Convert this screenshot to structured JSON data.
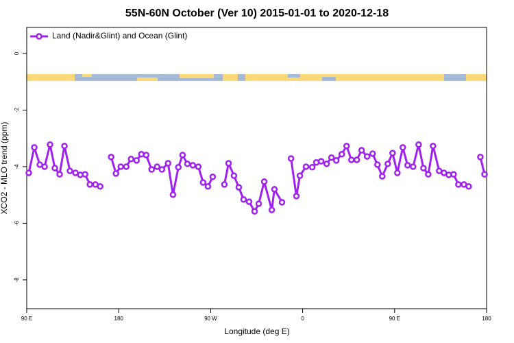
{
  "chart_data": {
    "type": "line",
    "title": "55N-60N October (Ver 10)   2015-01-01 to 2020-12-18",
    "xlabel": "Longitude (deg E)",
    "ylabel": "XCO2 - MLO trend (ppm)",
    "xlim": [
      90,
      540
    ],
    "xticks": [
      {
        "value": 90,
        "label": "90 E"
      },
      {
        "value": 180,
        "label": "180"
      },
      {
        "value": 270,
        "label": "90 W"
      },
      {
        "value": 360,
        "label": "0"
      },
      {
        "value": 450,
        "label": "90 E"
      },
      {
        "value": 540,
        "label": "180"
      }
    ],
    "ylim": [
      -9.02,
      0.92
    ],
    "yticks": [
      0,
      -2,
      -4,
      -6,
      -8
    ],
    "legend": "upper left",
    "x": [
      92.0,
      97.4,
      102.8,
      107.5,
      112.8,
      117.5,
      122.2,
      126.9,
      132.3,
      137.7,
      142.4,
      147.1,
      151.8,
      157.2,
      161.9,
      167.0,
      172.6,
      177.3,
      182.0,
      187.4,
      192.1,
      197.5,
      202.2,
      206.9,
      212.2,
      217.6,
      222.3,
      228.3,
      233.1,
      238.4,
      242.5,
      247.2,
      252.5,
      257.9,
      262.6,
      267.3,
      272.0,
      278.0,
      283.4,
      287.5,
      292.8,
      297.5,
      302.2,
      307.6,
      313.0,
      317.0,
      322.4,
      329.8,
      332.4,
      339.8,
      344.0,
      348.6,
      353.9,
      357.3,
      363.3,
      369.4,
      373.4,
      378.1,
      383.5,
      388.2,
      392.9,
      398.3,
      403.0,
      407.7,
      413.0,
      417.7,
      423.1,
      428.5,
      433.2,
      437.9,
      443.3,
      448.0,
      452.7,
      458.0,
      462.7,
      468.1,
      473.5,
      478.2,
      482.9,
      487.6,
      493.6,
      498.3,
      503.0,
      507.7,
      512.4,
      517.8,
      522.5,
      528.0,
      533.9,
      538.0
    ],
    "series": [
      {
        "name": "Land (Nadir&Glint) and Ocean (Glint)",
        "color": "#a020f0",
        "values": [
          -4.22,
          -3.32,
          -3.93,
          -4.0,
          -3.22,
          -4.05,
          -4.27,
          -3.27,
          -4.15,
          -4.22,
          -4.29,
          -4.27,
          -4.63,
          -4.63,
          -4.7,
          null,
          -3.66,
          -4.24,
          -4.0,
          -4.0,
          -3.73,
          -3.78,
          -3.56,
          -3.59,
          -4.1,
          -4.0,
          -4.1,
          -3.88,
          -4.99,
          -4.02,
          -3.59,
          -3.9,
          -3.95,
          -4.0,
          -4.56,
          -4.7,
          -4.36,
          null,
          -4.63,
          -3.88,
          -4.32,
          -4.73,
          -5.16,
          -5.24,
          -5.58,
          -5.31,
          -4.53,
          -5.53,
          -4.8,
          -5.26,
          null,
          -3.71,
          -5.04,
          -4.32,
          -4.0,
          -4.02,
          -3.85,
          -3.81,
          -3.9,
          -3.68,
          -3.78,
          -3.56,
          -3.27,
          -3.76,
          -3.76,
          -3.42,
          -3.64,
          -3.54,
          -3.93,
          -4.34,
          -3.9,
          -3.52,
          -4.22,
          -3.32,
          -3.95,
          -4.0,
          -3.22,
          -4.05,
          -4.27,
          -3.27,
          -4.15,
          -4.22,
          -4.29,
          -4.27,
          -4.63,
          -4.63,
          -4.7,
          null,
          -3.66,
          -4.27
        ]
      }
    ]
  }
}
